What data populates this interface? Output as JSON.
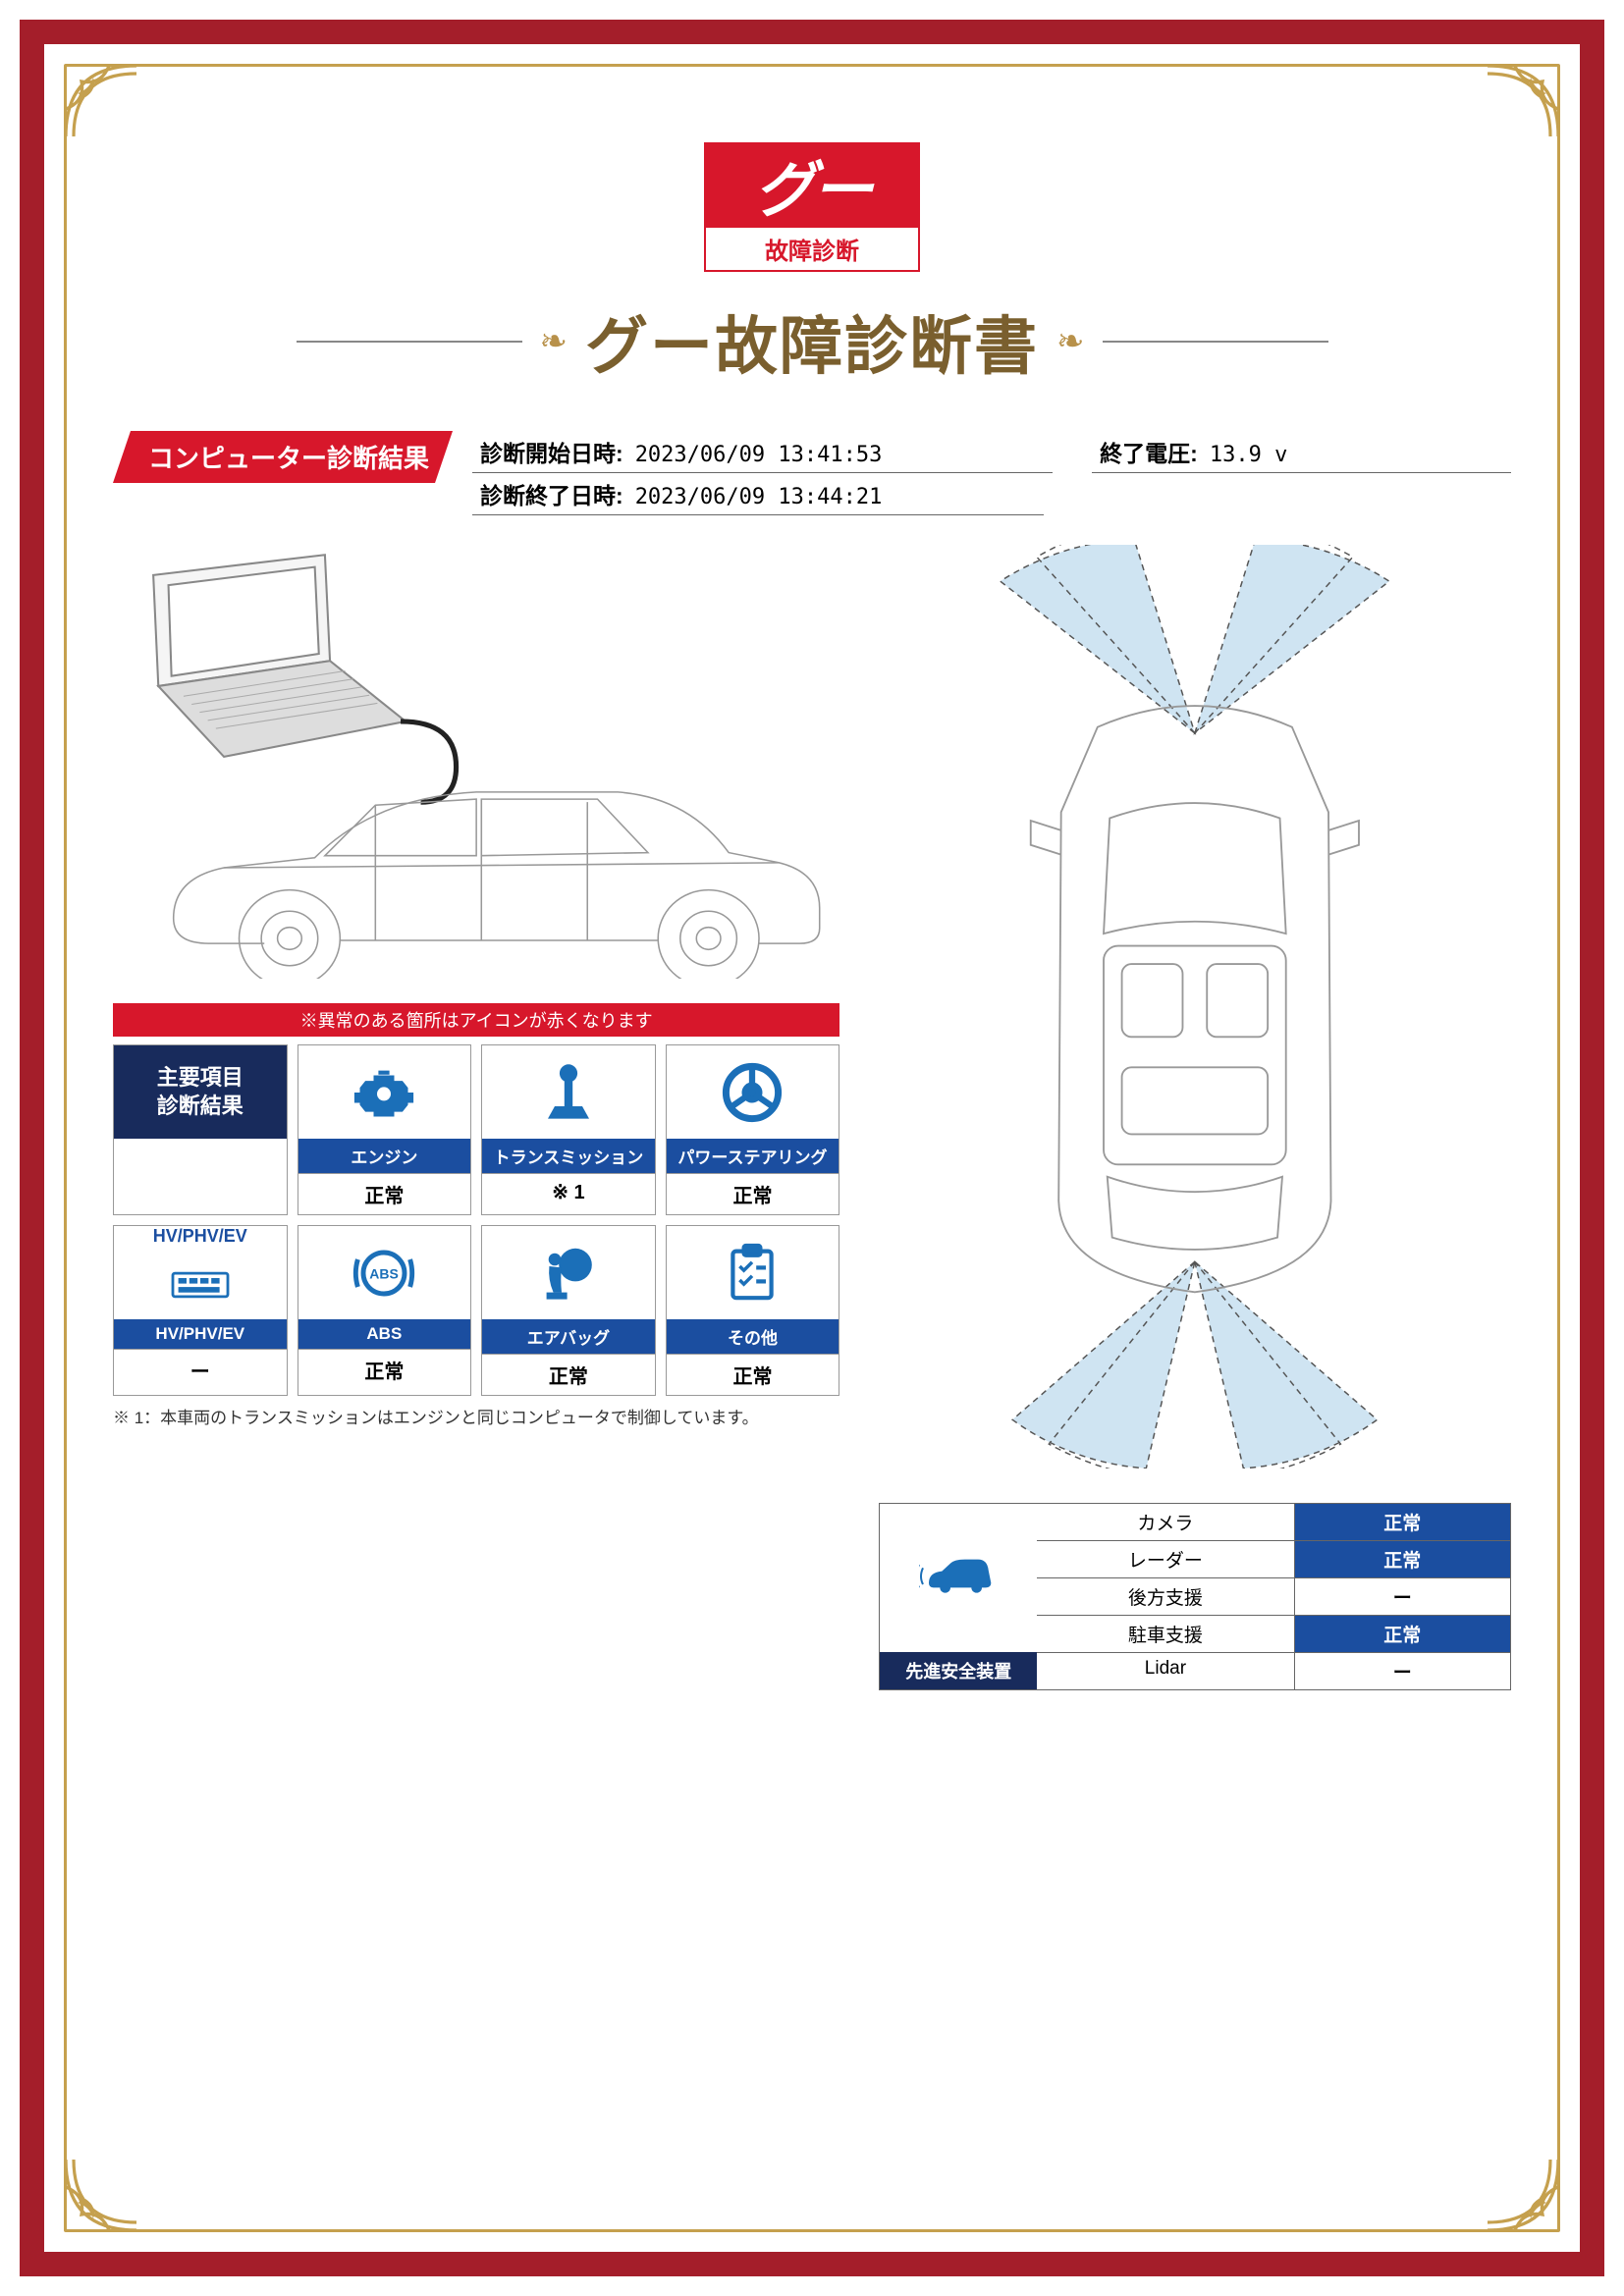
{
  "brand": {
    "logo_text": "グー",
    "logo_subtitle": "故障診断"
  },
  "document_title": "グー故障診断書",
  "section_header": "コンピューター診断結果",
  "meta": {
    "start_label": "診断開始日時:",
    "start_value": "2023/06/09 13:41:53",
    "voltage_label": "終了電圧:",
    "voltage_value": "13.9 v",
    "end_label": "診断終了日時:",
    "end_value": "2023/06/09 13:44:21"
  },
  "warning_bar": "※異常のある箇所はアイコンが赤くなります",
  "main_header": "主要項目\n診断結果",
  "tiles": {
    "engine": {
      "name": "エンジン",
      "status": "正常"
    },
    "transmission": {
      "name": "トランスミッション",
      "status": "※ 1"
    },
    "power_steer": {
      "name": "パワーステアリング",
      "status": "正常"
    },
    "hv": {
      "name": "HV/PHV/EV",
      "status": "ー",
      "icon_label": "HV/PHV/EV"
    },
    "abs": {
      "name": "ABS",
      "status": "正常"
    },
    "airbag": {
      "name": "エアバッグ",
      "status": "正常"
    },
    "other": {
      "name": "その他",
      "status": "正常"
    }
  },
  "footnote": "※ 1：本車両のトランスミッションはエンジンと同じコンピュータで制御しています。",
  "safety": {
    "header": "先進安全装置",
    "rows": [
      {
        "name": "カメラ",
        "status": "正常",
        "ok": true
      },
      {
        "name": "レーダー",
        "status": "正常",
        "ok": true
      },
      {
        "name": "後方支援",
        "status": "ー",
        "ok": false
      },
      {
        "name": "駐車支援",
        "status": "正常",
        "ok": true
      },
      {
        "name": "Lidar",
        "status": "ー",
        "ok": false
      }
    ]
  },
  "colors": {
    "frame": "#a41e2a",
    "gold": "#c5a04e",
    "title": "#7a5f2e",
    "red": "#d7172b",
    "navy": "#182b5c",
    "blue": "#1b4ea0",
    "sensor_fill": "#cfe4f2"
  }
}
